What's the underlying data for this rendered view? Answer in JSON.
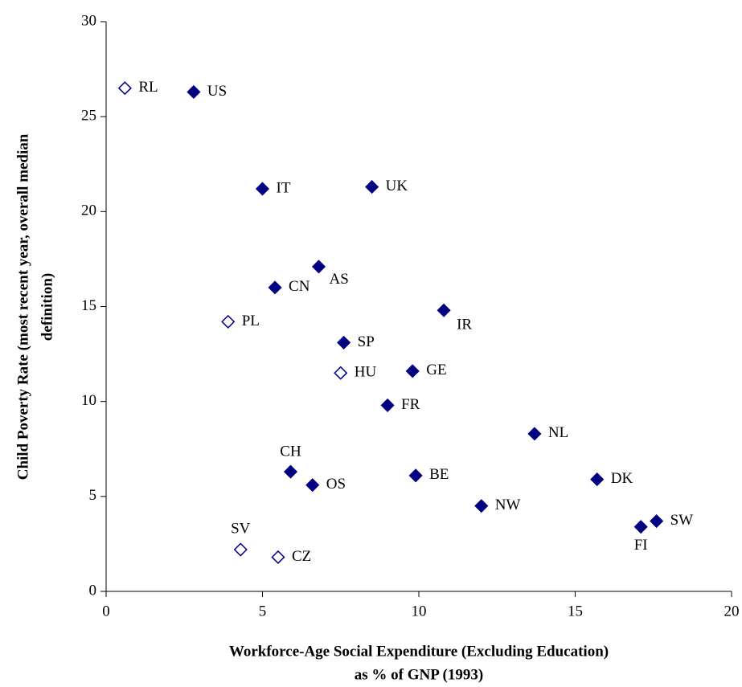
{
  "chart_data": {
    "type": "scatter",
    "x_title": [
      "Workforce-Age Social Expenditure (Excluding Education)",
      "as % of GNP (1993)"
    ],
    "y_title": [
      "Child Poverty Rate (most recent year, overall median",
      "definition)"
    ],
    "labels": [
      "RL",
      "US",
      "IT",
      "UK",
      "AS",
      "CN",
      "PL",
      "IR",
      "SP",
      "HU",
      "GE",
      "FR",
      "NL",
      "CH",
      "OS",
      "BE",
      "DK",
      "NW",
      "SW",
      "FI",
      "SV",
      "CZ"
    ],
    "x": [
      0.6,
      2.8,
      5.0,
      8.5,
      6.8,
      5.4,
      3.9,
      10.8,
      7.6,
      7.5,
      9.8,
      9.0,
      13.7,
      5.9,
      6.6,
      9.9,
      15.7,
      12.0,
      17.6,
      17.1,
      4.3,
      5.5
    ],
    "y": [
      26.5,
      26.3,
      21.2,
      21.3,
      17.1,
      16.0,
      14.2,
      14.8,
      13.1,
      11.5,
      11.6,
      9.8,
      8.3,
      6.3,
      5.6,
      6.1,
      5.9,
      4.5,
      3.7,
      3.4,
      2.2,
      1.8
    ],
    "filled": [
      false,
      true,
      true,
      true,
      true,
      true,
      false,
      true,
      true,
      false,
      true,
      true,
      true,
      true,
      true,
      true,
      true,
      true,
      true,
      true,
      false,
      false
    ],
    "color": "#000080",
    "xlim": [
      0,
      20
    ],
    "xticks": [
      0,
      5,
      10,
      15,
      20
    ],
    "ylim": [
      0,
      30
    ],
    "yticks": [
      0,
      5,
      10,
      15,
      20,
      25,
      30
    ]
  }
}
